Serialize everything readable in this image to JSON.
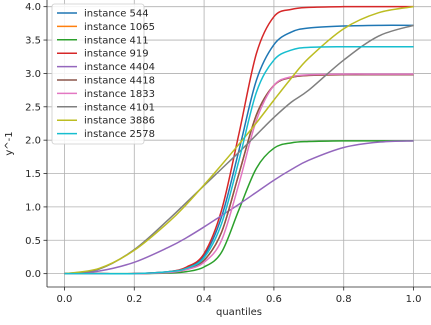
{
  "chart_data": {
    "type": "line",
    "title": "",
    "xlabel": "quantiles",
    "ylabel": "y^-1",
    "xlim": [
      -0.05,
      1.05
    ],
    "ylim": [
      -0.2,
      4.1
    ],
    "grid": true,
    "legend_position": "top-left",
    "x_ticks": [
      0.0,
      0.2,
      0.4,
      0.6,
      0.8,
      1.0
    ],
    "x_tick_labels": [
      "0.0",
      "0.2",
      "0.4",
      "0.6",
      "0.8",
      "1.0"
    ],
    "y_ticks": [
      0.0,
      0.5,
      1.0,
      1.5,
      2.0,
      2.5,
      3.0,
      3.5,
      4.0
    ],
    "y_tick_labels": [
      "0.0",
      "0.5",
      "1.0",
      "1.5",
      "2.0",
      "2.5",
      "3.0",
      "3.5",
      "4.0"
    ],
    "x": [
      0.0,
      0.1,
      0.2,
      0.3,
      0.35,
      0.4,
      0.45,
      0.5,
      0.55,
      0.6,
      0.65,
      0.7,
      0.8,
      0.9,
      1.0
    ],
    "series": [
      {
        "name": "instance 544",
        "color": "#1f77b4",
        "values": [
          0.0,
          0.0,
          0.0,
          0.03,
          0.09,
          0.27,
          0.85,
          1.85,
          2.9,
          3.43,
          3.62,
          3.68,
          3.71,
          3.72,
          3.72
        ]
      },
      {
        "name": "instance 1065",
        "color": "#ff7f0e",
        "values": [
          0.0,
          0.0,
          0.0,
          0.02,
          0.07,
          0.2,
          0.62,
          1.5,
          2.38,
          2.82,
          2.94,
          2.97,
          2.98,
          2.98,
          2.98
        ]
      },
      {
        "name": "instance 411",
        "color": "#2ca02c",
        "values": [
          0.0,
          0.0,
          0.0,
          0.01,
          0.03,
          0.1,
          0.32,
          0.96,
          1.58,
          1.88,
          1.96,
          1.98,
          1.99,
          1.99,
          1.99
        ]
      },
      {
        "name": "instance 919",
        "color": "#d62728",
        "values": [
          0.0,
          0.0,
          0.0,
          0.03,
          0.1,
          0.3,
          0.95,
          2.1,
          3.3,
          3.85,
          3.96,
          3.99,
          4.0,
          4.0,
          4.0
        ]
      },
      {
        "name": "instance 4404",
        "color": "#9467bd",
        "values": [
          0.0,
          0.04,
          0.17,
          0.4,
          0.54,
          0.7,
          0.87,
          1.04,
          1.22,
          1.4,
          1.56,
          1.7,
          1.89,
          1.97,
          1.99
        ]
      },
      {
        "name": "instance 4418",
        "color": "#8c564b",
        "values": [
          0.0,
          0.0,
          0.0,
          0.02,
          0.07,
          0.2,
          0.62,
          1.5,
          2.38,
          2.82,
          2.94,
          2.97,
          2.98,
          2.98,
          2.98
        ]
      },
      {
        "name": "instance 1833",
        "color": "#e377c2",
        "values": [
          0.0,
          0.0,
          0.0,
          0.02,
          0.06,
          0.17,
          0.5,
          1.35,
          2.3,
          2.82,
          2.95,
          2.98,
          2.99,
          2.99,
          2.99
        ]
      },
      {
        "name": "instance 4101",
        "color": "#7f7f7f",
        "values": [
          0.0,
          0.07,
          0.36,
          0.82,
          1.07,
          1.32,
          1.57,
          1.82,
          2.08,
          2.34,
          2.57,
          2.75,
          3.2,
          3.56,
          3.72
        ]
      },
      {
        "name": "instance 3886",
        "color": "#bcbd22",
        "values": [
          0.0,
          0.08,
          0.35,
          0.78,
          1.04,
          1.33,
          1.63,
          1.94,
          2.26,
          2.6,
          2.93,
          3.23,
          3.67,
          3.91,
          4.0
        ]
      },
      {
        "name": "instance 2578",
        "color": "#17becf",
        "values": [
          0.0,
          0.0,
          0.0,
          0.03,
          0.08,
          0.24,
          0.75,
          1.7,
          2.72,
          3.2,
          3.35,
          3.39,
          3.4,
          3.4,
          3.4
        ]
      }
    ]
  }
}
